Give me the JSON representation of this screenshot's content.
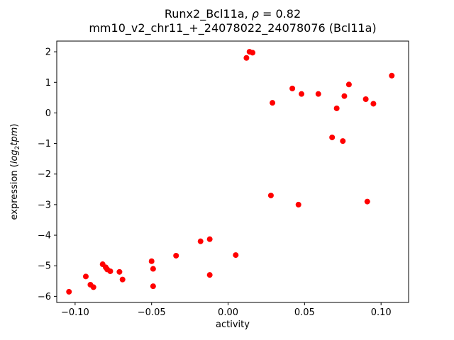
{
  "figure": {
    "background": "#ffffff",
    "axes_edge_color": "#000000",
    "point_color": "#ff0000"
  },
  "chart_data": {
    "type": "scatter",
    "title": "Runx2_Bcl11a, ρ = 0.82",
    "subtitle": "mm10_v2_chr11_+_24078022_24078076 (Bcl11a)",
    "xlabel": "activity",
    "ylabel": "expression (log2tpm)",
    "ylabel_parts": {
      "pre": "expression (",
      "math_log": "log",
      "math_sub": "2",
      "math_var": "tpm",
      "post": ")"
    },
    "xlim": [
      -0.112,
      0.118
    ],
    "ylim": [
      -6.2,
      2.35
    ],
    "grid": false,
    "legend": "none",
    "xticks": [
      -0.1,
      -0.05,
      0.0,
      0.05,
      0.1
    ],
    "xtick_labels": [
      "−0.10",
      "−0.05",
      "0.00",
      "0.05",
      "0.10"
    ],
    "yticks": [
      2,
      1,
      0,
      -1,
      -2,
      -3,
      -4,
      -5,
      -6
    ],
    "ytick_labels": [
      "2",
      "1",
      "0",
      "−1",
      "−2",
      "−3",
      "−4",
      "−5",
      "−6"
    ],
    "series": [
      {
        "name": "samples",
        "color": "#ff0000",
        "marker_radius": 4,
        "points": [
          [
            -0.104,
            -5.85
          ],
          [
            -0.093,
            -5.35
          ],
          [
            -0.09,
            -5.62
          ],
          [
            -0.088,
            -5.7
          ],
          [
            -0.082,
            -4.95
          ],
          [
            -0.08,
            -5.05
          ],
          [
            -0.079,
            -5.12
          ],
          [
            -0.077,
            -5.18
          ],
          [
            -0.071,
            -5.2
          ],
          [
            -0.069,
            -5.45
          ],
          [
            -0.05,
            -4.85
          ],
          [
            -0.049,
            -5.1
          ],
          [
            -0.049,
            -5.67
          ],
          [
            -0.034,
            -4.67
          ],
          [
            -0.018,
            -4.2
          ],
          [
            -0.012,
            -4.13
          ],
          [
            -0.012,
            -5.3
          ],
          [
            0.005,
            -4.65
          ],
          [
            0.012,
            1.8
          ],
          [
            0.014,
            2.0
          ],
          [
            0.016,
            1.97
          ],
          [
            0.028,
            -2.7
          ],
          [
            0.029,
            0.33
          ],
          [
            0.042,
            0.8
          ],
          [
            0.046,
            -3.0
          ],
          [
            0.048,
            0.62
          ],
          [
            0.059,
            0.62
          ],
          [
            0.068,
            -0.8
          ],
          [
            0.071,
            0.15
          ],
          [
            0.075,
            -0.92
          ],
          [
            0.076,
            0.55
          ],
          [
            0.079,
            0.93
          ],
          [
            0.09,
            0.45
          ],
          [
            0.091,
            -2.9
          ],
          [
            0.095,
            0.3
          ],
          [
            0.107,
            1.22
          ]
        ]
      }
    ]
  }
}
